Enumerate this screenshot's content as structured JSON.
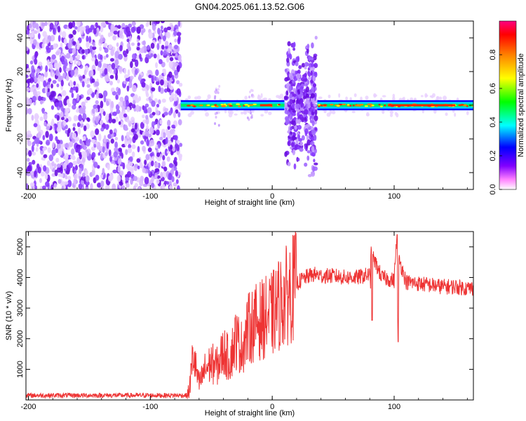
{
  "title": "GN04.2025.061.13.52.G06",
  "chart_data": [
    {
      "type": "heatmap",
      "name": "spectrogram",
      "xlabel": "Height of straight line (km)",
      "ylabel": "Frequency (Hz)",
      "xlim": [
        -202,
        165
      ],
      "ylim": [
        -50,
        50
      ],
      "xticks": [
        -200,
        -100,
        0,
        100
      ],
      "xtick_labels": [
        "-200",
        "-100",
        "0",
        "100"
      ],
      "yticks": [
        -40,
        -20,
        0,
        20,
        40
      ],
      "ytick_labels": [
        "-40",
        "-20",
        "0",
        "20",
        "40"
      ],
      "colorbar": {
        "label": "Normalized spectral amplitude",
        "range": [
          0,
          1
        ],
        "ticks": [
          0.0,
          0.2,
          0.4,
          0.6,
          0.8
        ],
        "tick_labels": [
          "0.0",
          "0.2",
          "0.4",
          "0.6",
          "0.8"
        ],
        "colors": [
          "#ffffff",
          "#ff80ff",
          "#8000ff",
          "#0000ff",
          "#00ffff",
          "#00ff00",
          "#ffff00",
          "#ff8000",
          "#ff0000",
          "#ff0080"
        ]
      },
      "regions": [
        {
          "x_range": [
            -202,
            -75
          ],
          "freq_range": [
            -50,
            50
          ],
          "description_level": 0.2
        },
        {
          "x_range": [
            -75,
            10
          ],
          "freq_range": [
            -3,
            3
          ],
          "description_level": 0.5
        },
        {
          "x_range": [
            10,
            37
          ],
          "freq_range": [
            -45,
            45
          ],
          "description_level": 0.3
        },
        {
          "x_range": [
            37,
            165
          ],
          "freq_range": [
            -3,
            3
          ],
          "description_level": 0.7
        }
      ]
    },
    {
      "type": "line",
      "name": "snr",
      "xlabel": "Height of straight line (km)",
      "ylabel": "SNR (10 * v/v)",
      "xlim": [
        -202,
        165
      ],
      "ylim": [
        0,
        5500
      ],
      "xticks": [
        -200,
        -100,
        0,
        100
      ],
      "xtick_labels": [
        "-200",
        "-100",
        "0",
        "100"
      ],
      "yticks": [
        1000,
        2000,
        3000,
        4000,
        5000
      ],
      "ytick_labels": [
        "1000",
        "2000",
        "3000",
        "4000",
        "5000"
      ],
      "color": "#ee3333",
      "series": [
        {
          "name": "SNR",
          "x": [
            -202,
            -180,
            -160,
            -140,
            -120,
            -100,
            -80,
            -70,
            -68,
            -65,
            -62,
            -60,
            -55,
            -50,
            -45,
            -40,
            -35,
            -30,
            -25,
            -20,
            -15,
            -10,
            -5,
            0,
            5,
            10,
            15,
            20,
            25,
            30,
            35,
            40,
            50,
            60,
            70,
            80,
            81,
            82,
            90,
            100,
            102,
            103,
            104,
            110,
            120,
            130,
            140,
            150,
            160,
            165
          ],
          "y": [
            150,
            150,
            150,
            150,
            150,
            150,
            150,
            150,
            300,
            1500,
            900,
            500,
            1000,
            1200,
            1100,
            1600,
            1300,
            2000,
            1700,
            2300,
            2500,
            2600,
            2700,
            2800,
            3100,
            3300,
            3600,
            3800,
            3950,
            4050,
            4100,
            4050,
            4050,
            4000,
            4000,
            4100,
            3100,
            4700,
            4000,
            3900,
            5300,
            2200,
            4600,
            3850,
            3800,
            3750,
            3700,
            3700,
            3650,
            3650
          ]
        }
      ]
    }
  ]
}
